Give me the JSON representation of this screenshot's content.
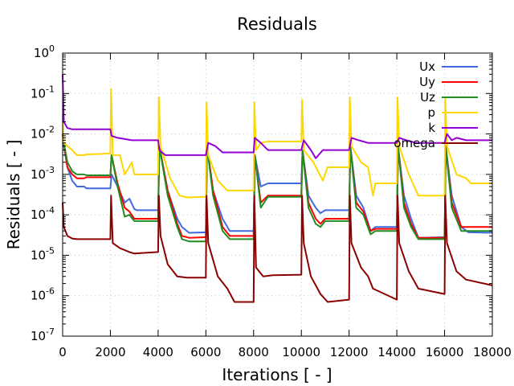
{
  "chart_data": {
    "type": "line",
    "title": "Residuals",
    "xlabel": "Iterations [ - ]",
    "ylabel": "Residuals [ - ]",
    "xscale": "linear",
    "yscale": "log",
    "xlim": [
      0,
      18000
    ],
    "ylim": [
      1e-07,
      1
    ],
    "x_ticks": [
      0,
      2000,
      4000,
      6000,
      8000,
      10000,
      12000,
      14000,
      16000,
      18000
    ],
    "x_tick_labels": [
      "0",
      "2000",
      "4000",
      "6000",
      "8000",
      "10000",
      "12000",
      "14000",
      "16000",
      "18000"
    ],
    "y_ticks_exp": [
      0,
      -1,
      -2,
      -3,
      -4,
      -5,
      -6,
      -7
    ],
    "y_tick_base": "10",
    "grid": true,
    "legend_position": "top-right",
    "series": [
      {
        "name": "Ux",
        "color": "#4169e1",
        "x": [
          0,
          50,
          200,
          400,
          600,
          900,
          1000,
          2000,
          2050,
          2300,
          2600,
          2800,
          3000,
          3100,
          4000,
          4050,
          4400,
          4800,
          5000,
          5300,
          6000,
          6050,
          6300,
          6700,
          7000,
          8000,
          8050,
          8300,
          8600,
          9000,
          10000,
          10050,
          10300,
          10600,
          10800,
          11000,
          12000,
          12050,
          12300,
          12600,
          12900,
          13100,
          14000,
          14050,
          14300,
          14600,
          14900,
          16000,
          16050,
          16300,
          16700,
          17000,
          18000
        ],
        "y": [
          0.01,
          0.005,
          0.0015,
          0.0007,
          0.0005,
          0.0005,
          0.00045,
          0.00045,
          0.001,
          0.0005,
          0.0002,
          0.00025,
          0.00014,
          0.00013,
          0.00013,
          0.005,
          0.0004,
          8e-05,
          5e-05,
          3.6e-05,
          3.7e-05,
          0.005,
          0.0004,
          8e-05,
          4e-05,
          4e-05,
          0.003,
          0.0005,
          0.0006,
          0.0006,
          0.0006,
          0.004,
          0.0003,
          0.00015,
          0.00011,
          0.00013,
          0.00013,
          0.005,
          0.0003,
          0.00015,
          4e-05,
          5e-05,
          5e-05,
          0.005,
          0.0003,
          8e-05,
          2.7e-05,
          2.8e-05,
          0.005,
          0.0003,
          5e-05,
          3.7e-05,
          3.6e-05
        ]
      },
      {
        "name": "Uy",
        "color": "#ff0000",
        "x": [
          0,
          50,
          200,
          400,
          600,
          900,
          1000,
          2000,
          2050,
          2300,
          2600,
          2800,
          3000,
          3100,
          4000,
          4050,
          4400,
          4800,
          5000,
          5300,
          6000,
          6050,
          6300,
          6700,
          7000,
          8000,
          8050,
          8300,
          8600,
          9000,
          10000,
          10050,
          10300,
          10600,
          10800,
          11000,
          12000,
          12050,
          12300,
          12600,
          12900,
          13100,
          14000,
          14050,
          14300,
          14600,
          14900,
          16000,
          16050,
          16300,
          16700,
          17000,
          18000
        ],
        "y": [
          0.01,
          0.006,
          0.0015,
          0.001,
          0.0008,
          0.0008,
          0.00085,
          0.00085,
          0.003,
          0.0006,
          0.00015,
          0.00012,
          8e-05,
          8e-05,
          8e-05,
          0.005,
          0.0004,
          6e-05,
          3e-05,
          2.7e-05,
          2.8e-05,
          0.005,
          0.0004,
          5e-05,
          3e-05,
          3e-05,
          0.003,
          0.0002,
          0.0003,
          0.0003,
          0.0003,
          0.004,
          0.0002,
          8e-05,
          6e-05,
          8e-05,
          8e-05,
          0.005,
          0.0002,
          0.00012,
          4e-05,
          4.5e-05,
          4.5e-05,
          0.005,
          0.0002,
          6e-05,
          2.7e-05,
          2.7e-05,
          0.005,
          0.0002,
          5e-05,
          5e-05,
          5e-05
        ]
      },
      {
        "name": "Uz",
        "color": "#228b22",
        "x": [
          0,
          50,
          200,
          400,
          600,
          900,
          1000,
          2000,
          2050,
          2300,
          2600,
          2800,
          3000,
          3100,
          4000,
          4050,
          4400,
          4800,
          5000,
          5300,
          6000,
          6050,
          6300,
          6700,
          7000,
          8000,
          8050,
          8300,
          8600,
          9000,
          10000,
          10050,
          10300,
          10600,
          10800,
          11000,
          12000,
          12050,
          12300,
          12600,
          12900,
          13100,
          14000,
          14050,
          14300,
          14600,
          14900,
          16000,
          16050,
          16300,
          16700,
          17000,
          18000
        ],
        "y": [
          0.01,
          0.006,
          0.002,
          0.0012,
          0.001,
          0.001,
          0.00095,
          0.00095,
          0.003,
          0.0005,
          9e-05,
          0.0001,
          7e-05,
          7e-05,
          7e-05,
          0.005,
          0.0003,
          5e-05,
          2.5e-05,
          2.2e-05,
          2.2e-05,
          0.005,
          0.0003,
          4e-05,
          2.5e-05,
          2.5e-05,
          0.003,
          0.00015,
          0.00028,
          0.00028,
          0.00028,
          0.004,
          0.00015,
          6e-05,
          5e-05,
          7e-05,
          7e-05,
          0.005,
          0.00015,
          0.0001,
          3.3e-05,
          4e-05,
          4e-05,
          0.005,
          0.00015,
          5e-05,
          2.5e-05,
          2.5e-05,
          0.005,
          0.00015,
          4e-05,
          4e-05,
          4e-05
        ]
      },
      {
        "name": "p",
        "color": "#ffd700",
        "x": [
          0,
          50,
          200,
          400,
          600,
          900,
          1000,
          2000,
          2030,
          2100,
          2400,
          2600,
          2900,
          3000,
          3100,
          4000,
          4030,
          4100,
          4500,
          4900,
          5200,
          6000,
          6030,
          6100,
          6500,
          6900,
          7100,
          8000,
          8030,
          8100,
          8300,
          8600,
          9000,
          10000,
          10030,
          10100,
          10500,
          10900,
          11100,
          12000,
          12030,
          12100,
          12500,
          12800,
          13000,
          13100,
          14000,
          14030,
          14100,
          14500,
          14900,
          16000,
          16030,
          16100,
          16500,
          16900,
          17100,
          18000
        ],
        "y": [
          0.03,
          0.006,
          0.005,
          0.004,
          0.003,
          0.003,
          0.0031,
          0.0033,
          0.13,
          0.003,
          0.003,
          0.001,
          0.002,
          0.001,
          0.001,
          0.001,
          0.08,
          0.005,
          0.0008,
          0.0003,
          0.00027,
          0.00028,
          0.06,
          0.003,
          0.0007,
          0.0004,
          0.0004,
          0.0004,
          0.06,
          0.004,
          0.006,
          0.0065,
          0.0065,
          0.0065,
          0.07,
          0.004,
          0.002,
          0.0007,
          0.0015,
          0.0015,
          0.08,
          0.005,
          0.002,
          0.0015,
          0.0003,
          0.0006,
          0.0006,
          0.08,
          0.005,
          0.001,
          0.0003,
          0.0003,
          0.08,
          0.005,
          0.001,
          0.0008,
          0.0006,
          0.0006
        ]
      },
      {
        "name": "k",
        "color": "#9400d3",
        "x": [
          0,
          50,
          200,
          400,
          600,
          900,
          1000,
          2000,
          2050,
          2300,
          2600,
          2900,
          3000,
          4000,
          4050,
          4300,
          4600,
          5000,
          5200,
          6000,
          6100,
          6400,
          6700,
          7000,
          8000,
          8050,
          8300,
          8600,
          9000,
          10000,
          10100,
          10400,
          10600,
          10900,
          11100,
          12000,
          12100,
          12400,
          12800,
          13000,
          14000,
          14100,
          14400,
          14800,
          15000,
          16000,
          16100,
          16300,
          16500,
          16900,
          18000
        ],
        "y": [
          0.3,
          0.02,
          0.014,
          0.013,
          0.013,
          0.013,
          0.013,
          0.013,
          0.009,
          0.008,
          0.0075,
          0.007,
          0.007,
          0.007,
          0.004,
          0.003,
          0.003,
          0.003,
          0.003,
          0.003,
          0.006,
          0.005,
          0.0035,
          0.0035,
          0.0035,
          0.008,
          0.006,
          0.004,
          0.004,
          0.004,
          0.007,
          0.004,
          0.0025,
          0.004,
          0.004,
          0.004,
          0.008,
          0.007,
          0.006,
          0.006,
          0.006,
          0.008,
          0.007,
          0.006,
          0.006,
          0.006,
          0.01,
          0.007,
          0.008,
          0.007,
          0.007
        ]
      },
      {
        "name": "omega",
        "color": "#8b0000",
        "x": [
          0,
          50,
          200,
          400,
          600,
          900,
          1000,
          2000,
          2030,
          2100,
          2400,
          2800,
          3000,
          4000,
          4030,
          4100,
          4400,
          4800,
          5200,
          6000,
          6030,
          6100,
          6500,
          6900,
          7200,
          8000,
          8030,
          8100,
          8400,
          8800,
          10000,
          10030,
          10100,
          10400,
          10800,
          11100,
          12000,
          12030,
          12100,
          12500,
          12800,
          13000,
          14000,
          14030,
          14100,
          14500,
          14900,
          16000,
          16030,
          16100,
          16500,
          16900,
          18000
        ],
        "y": [
          0.0002,
          5e-05,
          3e-05,
          2.6e-05,
          2.5e-05,
          2.5e-05,
          2.5e-05,
          2.5e-05,
          0.0003,
          2e-05,
          1.5e-05,
          1.2e-05,
          1.1e-05,
          1.2e-05,
          0.0003,
          3e-05,
          6e-06,
          3e-06,
          2.8e-06,
          2.8e-06,
          0.0003,
          2e-05,
          3e-06,
          1.5e-06,
          7e-07,
          7e-07,
          0.0003,
          5e-06,
          3e-06,
          3.2e-06,
          3.3e-06,
          0.0003,
          2e-05,
          3e-06,
          1.1e-06,
          7e-07,
          8e-07,
          0.0003,
          2e-05,
          5e-06,
          3e-06,
          1.5e-06,
          8e-07,
          0.0003,
          2e-05,
          4e-06,
          1.5e-06,
          1.1e-06,
          0.0003,
          2e-05,
          4e-06,
          2.5e-06,
          1.8e-06
        ]
      }
    ]
  }
}
